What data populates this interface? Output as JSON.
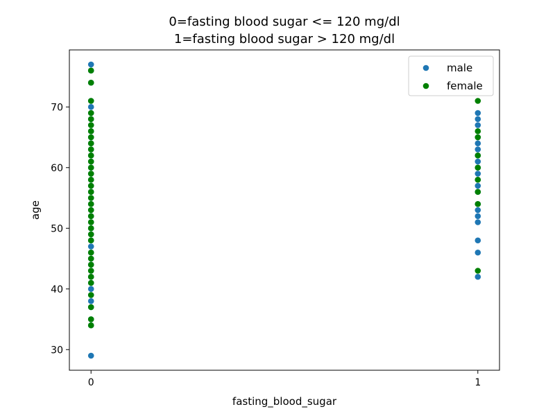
{
  "chart_data": {
    "type": "scatter",
    "title_line1": "0=fasting blood sugar <= 120 mg/dl",
    "title_line2": "1=fasting blood sugar > 120 mg/dl",
    "xlabel": "fasting_blood_sugar",
    "ylabel": "age",
    "xlim": [
      -0.056,
      1.056
    ],
    "ylim": [
      26.6,
      79.4
    ],
    "xticks": [
      0,
      1
    ],
    "yticks": [
      30,
      40,
      50,
      60,
      70
    ],
    "grid": false,
    "legend_position": "top-right",
    "series": [
      {
        "name": "male",
        "color": "#1f77b4",
        "points": [
          {
            "x": 0,
            "ages": [
              29,
              34,
              35,
              37,
              38,
              39,
              40,
              41,
              42,
              43,
              44,
              45,
              46,
              47,
              48,
              49,
              50,
              51,
              52,
              53,
              54,
              55,
              56,
              57,
              58,
              59,
              60,
              61,
              62,
              63,
              64,
              65,
              66,
              67,
              68,
              69,
              70,
              71,
              74,
              76,
              77
            ]
          },
          {
            "x": 1,
            "ages": [
              42,
              46,
              48,
              51,
              52,
              53,
              54,
              56,
              57,
              58,
              59,
              60,
              61,
              62,
              63,
              64,
              65,
              67,
              68,
              69
            ]
          }
        ]
      },
      {
        "name": "female",
        "color": "#008000",
        "points": [
          {
            "x": 0,
            "ages": [
              34,
              35,
              37,
              39,
              41,
              42,
              43,
              44,
              45,
              46,
              48,
              49,
              50,
              51,
              52,
              53,
              54,
              55,
              56,
              57,
              58,
              59,
              60,
              61,
              62,
              63,
              64,
              65,
              66,
              67,
              68,
              69,
              71,
              74,
              76
            ]
          },
          {
            "x": 1,
            "ages": [
              43,
              54,
              56,
              58,
              60,
              62,
              65,
              66,
              71
            ]
          }
        ]
      }
    ]
  }
}
